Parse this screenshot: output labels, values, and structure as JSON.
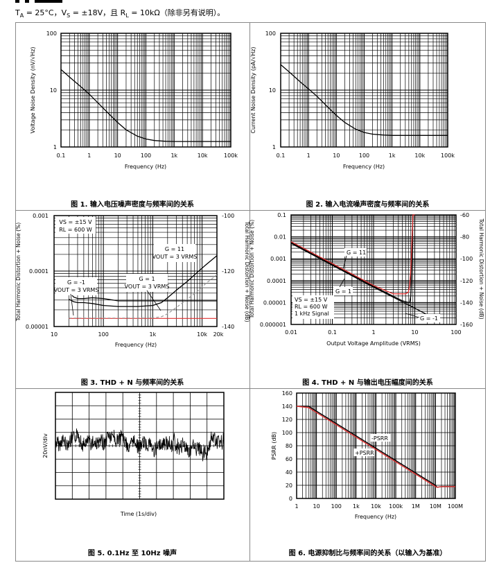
{
  "header": {
    "conditions": "TA = 25°C，VS = ±18V，且 RL = 10kΩ（除非另有说明）。",
    "ta": "T",
    "ta_sub": "A",
    "ta_rest": " = 25°C，V",
    "vs_sub": "S",
    "vs_rest": " = ±18V，且 R",
    "rl_sub": "L",
    "rl_rest": " = 10kΩ（除非另有说明）。"
  },
  "figures": [
    {
      "id": "fig1",
      "caption": "图 1. 输入电压噪声密度与频率间的关系"
    },
    {
      "id": "fig2",
      "caption": "图 2. 输入电流噪声密度与频率间的关系"
    },
    {
      "id": "fig3",
      "caption": "图 3. THD + N 与频率间的关系"
    },
    {
      "id": "fig4",
      "caption": "图 4. THD + N 与输出电压幅度间的关系"
    },
    {
      "id": "fig5",
      "caption": "图 5. 0.1Hz 至 10Hz 噪声"
    },
    {
      "id": "fig6",
      "caption": "图 6. 电源抑制比与频率间的关系（以输入为基准）"
    }
  ],
  "chart_data": [
    {
      "id": "fig1",
      "type": "line",
      "ylabel": "Voltage Noise Density (nV/√Hz)",
      "xlabel": "Frequency (Hz)",
      "xscale": "log",
      "yscale": "log",
      "xlim": [
        0.1,
        100000
      ],
      "ylim": [
        1,
        100
      ],
      "xticks": [
        "0.1",
        "1",
        "10",
        "100",
        "1k",
        "10k",
        "100k"
      ],
      "yticks": [
        "1",
        "10",
        "100"
      ],
      "series": [
        {
          "name": "noise",
          "x": [
            0.1,
            0.2,
            0.5,
            1,
            2,
            5,
            10,
            20,
            50,
            100,
            200,
            500,
            1000,
            10000,
            100000
          ],
          "y": [
            23,
            17,
            11.5,
            8.5,
            6,
            3.8,
            2.7,
            2,
            1.55,
            1.38,
            1.3,
            1.26,
            1.25,
            1.25,
            1.25
          ]
        }
      ]
    },
    {
      "id": "fig2",
      "type": "line",
      "ylabel": "Current Noise Density (pA/√Hz)",
      "xlabel": "Frequency (Hz)",
      "xscale": "log",
      "yscale": "log",
      "xlim": [
        0.1,
        100000
      ],
      "ylim": [
        1,
        100
      ],
      "xticks": [
        "0.1",
        "1",
        "10",
        "100",
        "1k",
        "10k",
        "100k"
      ],
      "yticks": [
        "1",
        "10",
        "100"
      ],
      "series": [
        {
          "name": "noise",
          "x": [
            0.1,
            0.2,
            0.5,
            1,
            2,
            5,
            10,
            20,
            50,
            100,
            200,
            500,
            1000,
            10000,
            100000
          ],
          "y": [
            28,
            21,
            14,
            10.5,
            7.8,
            5,
            3.6,
            2.7,
            2.05,
            1.8,
            1.68,
            1.62,
            1.6,
            1.6,
            1.6
          ]
        }
      ]
    },
    {
      "id": "fig3",
      "type": "line",
      "ylabel": "Total Harmonic Distortion + Noise (%)",
      "y2label": "Total Harmonic Distortion + Noise (dB)",
      "xlabel": "Frequency (Hz)",
      "xscale": "log",
      "yscale": "log",
      "xlim": [
        10,
        20000
      ],
      "ylim": [
        1e-05,
        0.001
      ],
      "y2lim": [
        -140,
        -100
      ],
      "xticks": [
        "10",
        "100",
        "1k",
        "10k",
        "20k"
      ],
      "yticks": [
        "0.00001",
        "0.0001",
        "0.001"
      ],
      "y2ticks": [
        "-140",
        "-120",
        "-100"
      ],
      "annotations": [
        {
          "lines": [
            "VS = ±15 V",
            "RL = 600 W"
          ]
        },
        {
          "lines": [
            "G = 11",
            "VOUT = 3 VRMS"
          ]
        },
        {
          "lines": [
            "G = 1",
            "VOUT = 3 VRMS"
          ]
        },
        {
          "lines": [
            "G = -1",
            "VOUT = 3 VRMS"
          ]
        }
      ],
      "series": [
        {
          "name": "G = 11",
          "x": [
            20,
            25,
            30,
            40,
            60,
            100,
            200,
            500,
            1000,
            1500,
            2000,
            3000,
            5000,
            8000,
            12000,
            20000
          ],
          "y": [
            3.1e-05,
            2.8e-05,
            2.7e-05,
            2.7e-05,
            2.6e-05,
            2.4e-05,
            2.3e-05,
            2.3e-05,
            2.4e-05,
            2.7e-05,
            3.3e-05,
            4.5e-05,
            6.5e-05,
            9.5e-05,
            0.00013,
            0.00019
          ]
        },
        {
          "name": "G = -1",
          "x": [
            20,
            25,
            30,
            40,
            60,
            100,
            200,
            500,
            1000,
            2000,
            5000,
            10000,
            20000
          ],
          "y": [
            4.2e-05,
            3.4e-05,
            3.2e-05,
            3.2e-05,
            3.3e-05,
            3.2e-05,
            2.9e-05,
            2.9e-05,
            2.9e-05,
            2.9e-05,
            2.9e-05,
            2.9e-05,
            2.9e-05
          ]
        },
        {
          "name": "G = 1",
          "x": [
            20,
            100,
            500,
            1000,
            1500,
            2000,
            3000,
            5000,
            8000,
            12000,
            20000
          ],
          "y": [
            1.42e-05,
            1.42e-05,
            1.42e-05,
            1.43e-05,
            1.5e-05,
            1.7e-05,
            2.2e-05,
            3.1e-05,
            4.3e-05,
            6e-05,
            8.5e-05
          ]
        },
        {
          "name": "red",
          "x": [
            20,
            20000
          ],
          "y": [
            1.4e-05,
            1.4e-05
          ]
        }
      ]
    },
    {
      "id": "fig4",
      "type": "line",
      "ylabel": "Total Harmonic Distortion + Noise (%)",
      "y2label": "Total Harmonic Distortion + Noise (dB)",
      "xlabel": "Output Voltage Amplitude (VRMS)",
      "xscale": "log",
      "yscale": "log",
      "xlim": [
        0.01,
        100
      ],
      "ylim": [
        1e-06,
        0.1
      ],
      "y2lim": [
        -160,
        -60
      ],
      "xticks": [
        "0.01",
        "0.1",
        "1",
        "10",
        "100"
      ],
      "yticks": [
        "0.000001",
        "0.00001",
        "0.0001",
        "0.001",
        "0.01",
        "0.1"
      ],
      "y2ticks": [
        "-160",
        "-140",
        "-120",
        "-100",
        "-80",
        "-60"
      ],
      "annotations": [
        {
          "lines": [
            "G = 11"
          ]
        },
        {
          "lines": [
            "G = 1"
          ]
        },
        {
          "lines": [
            "G = -1"
          ]
        },
        {
          "lines": [
            "VS = ±15 V",
            "RL = 600 W",
            "1 kHz Signal"
          ]
        }
      ],
      "series": [
        {
          "name": "G = 11",
          "x": [
            0.01,
            0.1,
            1,
            3,
            6,
            7,
            7.5,
            8,
            8.5,
            9,
            10
          ],
          "y": [
            0.006,
            0.0006,
            6e-05,
            2.5e-05,
            2.5e-05,
            3e-05,
            6e-05,
            0.0003,
            0.005,
            0.1,
            0.1
          ]
        },
        {
          "name": "G = 1",
          "x": [
            0.01,
            0.1,
            1,
            5,
            7,
            7.5,
            8,
            8.3,
            9,
            10
          ],
          "y": [
            0.0055,
            0.00055,
            5.5e-05,
            1.2e-05,
            1e-05,
            1e-05,
            2e-05,
            0.0001,
            0.1,
            0.1
          ]
        },
        {
          "name": "G = -1",
          "x": [
            0.01,
            0.1,
            1,
            10,
            20
          ],
          "y": [
            0.005,
            0.0005,
            5e-05,
            5.5e-06,
            2.8e-06
          ]
        }
      ]
    },
    {
      "id": "fig5",
      "type": "line",
      "ylabel": "20nV/div",
      "xlabel": "Time (1s/div)",
      "xdivs": 10,
      "ydivs": 8,
      "series": [
        {
          "name": "noise",
          "note": "random noise trace"
        }
      ]
    },
    {
      "id": "fig6",
      "type": "line",
      "ylabel": "PSRR (dB)",
      "xlabel": "Frequency (Hz)",
      "xscale": "log",
      "xlim": [
        1,
        100000000
      ],
      "ylim": [
        0,
        160
      ],
      "xticks": [
        "1",
        "10",
        "100",
        "1k",
        "10k",
        "100k",
        "1M",
        "10M",
        "100M"
      ],
      "yticks": [
        "0",
        "20",
        "40",
        "60",
        "80",
        "100",
        "120",
        "140",
        "160"
      ],
      "annotations": [
        {
          "lines": [
            "-PSRR"
          ]
        },
        {
          "lines": [
            "+PSRR"
          ]
        }
      ],
      "series": [
        {
          "name": "-PSRR",
          "x": [
            1,
            4,
            10000000,
            12000000,
            20000000,
            100000000
          ],
          "y": [
            140,
            140,
            20,
            17,
            18,
            18
          ]
        },
        {
          "name": "+PSRR",
          "x": [
            1,
            4,
            10000000,
            12000000,
            20000000,
            100000000
          ],
          "y": [
            140,
            138,
            18,
            17,
            18,
            18
          ]
        }
      ]
    }
  ]
}
